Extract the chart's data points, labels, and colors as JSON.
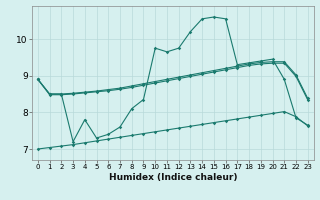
{
  "title": "",
  "xlabel": "Humidex (Indice chaleur)",
  "bg_color": "#d6f0ef",
  "grid_color": "#b8dada",
  "line_color": "#1a7a6e",
  "xlim": [
    -0.5,
    23.5
  ],
  "ylim": [
    6.7,
    10.9
  ],
  "yticks": [
    7,
    8,
    9,
    10
  ],
  "xticks": [
    0,
    1,
    2,
    3,
    4,
    5,
    6,
    7,
    8,
    9,
    10,
    11,
    12,
    13,
    14,
    15,
    16,
    17,
    18,
    19,
    20,
    21,
    22,
    23
  ],
  "series": [
    [
      8.9,
      8.5,
      8.5,
      7.2,
      7.8,
      7.3,
      7.4,
      7.6,
      8.1,
      8.35,
      9.75,
      9.65,
      9.75,
      10.2,
      10.55,
      10.6,
      10.55,
      9.3,
      9.35,
      9.4,
      9.45,
      8.9,
      7.85,
      7.65
    ],
    [
      8.9,
      8.5,
      8.5,
      8.52,
      8.55,
      8.58,
      8.62,
      8.66,
      8.72,
      8.78,
      8.84,
      8.9,
      8.96,
      9.02,
      9.08,
      9.14,
      9.2,
      9.26,
      9.32,
      9.36,
      9.38,
      9.38,
      9.02,
      8.38
    ],
    [
      8.9,
      8.48,
      8.48,
      8.5,
      8.53,
      8.56,
      8.59,
      8.63,
      8.68,
      8.74,
      8.8,
      8.86,
      8.92,
      8.98,
      9.04,
      9.1,
      9.16,
      9.22,
      9.28,
      9.32,
      9.34,
      9.34,
      8.98,
      8.34
    ],
    [
      7.0,
      7.04,
      7.08,
      7.12,
      7.17,
      7.22,
      7.27,
      7.32,
      7.37,
      7.42,
      7.47,
      7.52,
      7.57,
      7.62,
      7.67,
      7.72,
      7.77,
      7.82,
      7.87,
      7.92,
      7.97,
      8.02,
      7.88,
      7.63
    ]
  ]
}
